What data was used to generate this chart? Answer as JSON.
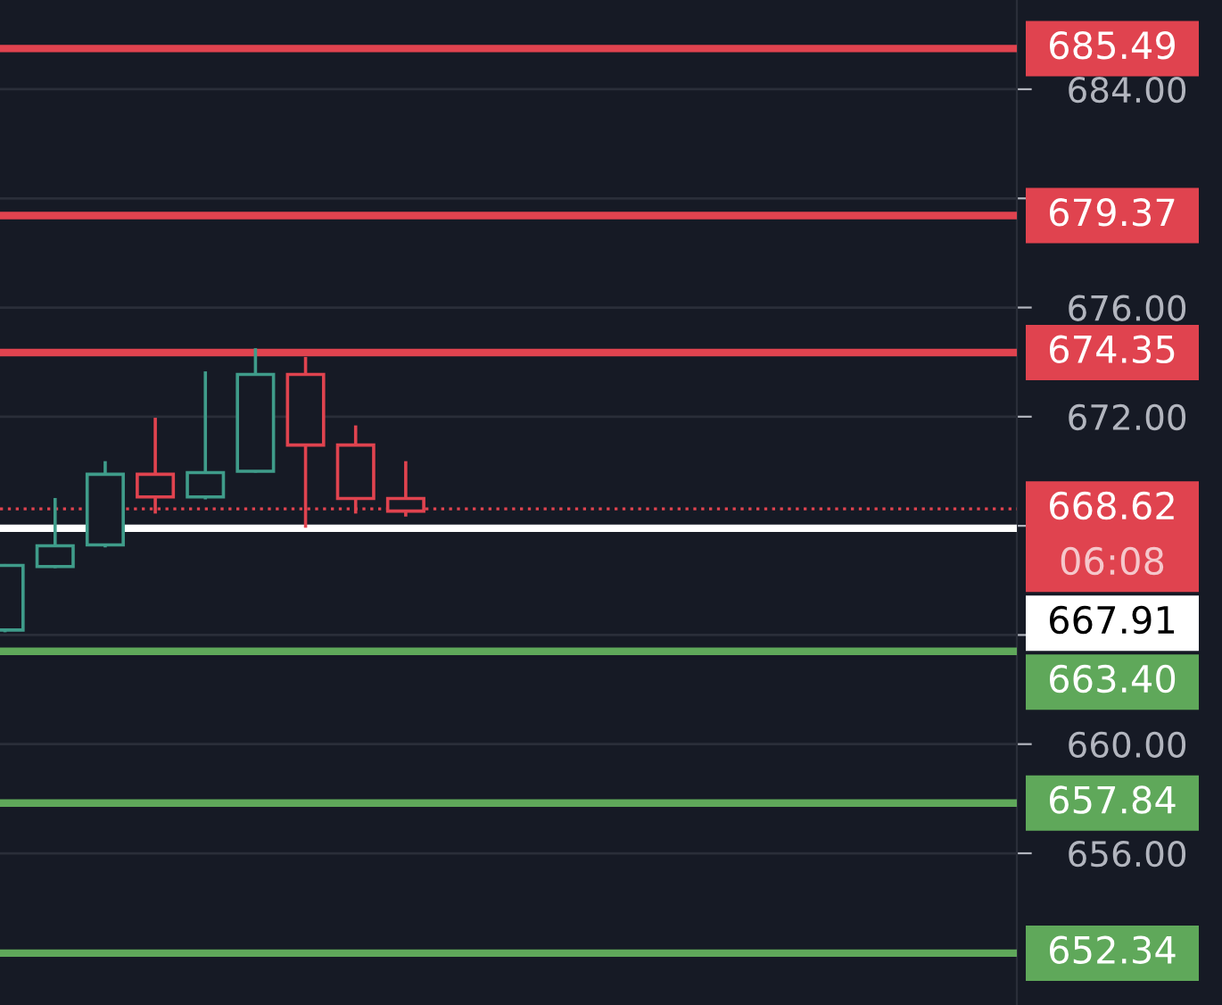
{
  "chart_data": {
    "type": "candlestick",
    "categories": [
      null,
      null,
      null,
      null,
      null,
      null,
      null,
      null,
      null,
      null,
      null,
      null,
      null,
      null,
      null,
      null,
      null,
      null,
      null,
      null,
      null
    ],
    "ohlc": [
      [
        664.18,
        666.6,
        664.1,
        666.55
      ],
      [
        666.51,
        669.02,
        666.45,
        667.27
      ],
      [
        667.3,
        670.37,
        667.21,
        669.89
      ],
      [
        669.89,
        671.96,
        668.45,
        669.06
      ],
      [
        669.06,
        673.66,
        668.97,
        669.95
      ],
      [
        670.0,
        674.51,
        669.95,
        673.55
      ],
      [
        673.55,
        674.19,
        667.93,
        670.96
      ],
      [
        670.96,
        671.68,
        668.45,
        669.0
      ],
      [
        669.0,
        670.37,
        668.34,
        668.54
      ],
      null,
      null,
      null,
      null,
      null,
      null,
      null,
      null,
      null,
      null,
      null,
      null
    ],
    "colors": [
      "#3f9c8a",
      "#3f9c8a",
      "#3f9c8a",
      "#e0434f",
      "#3f9c8a",
      "#3f9c8a",
      "#e0434f",
      "#e0434f",
      "#e0434f",
      null,
      null,
      null,
      null,
      null,
      null,
      null,
      null,
      null,
      null,
      null,
      null
    ],
    "ylim": [
      650.44,
      687.27
    ],
    "yticks": [
      {
        "value": 656,
        "label": "656.00"
      },
      {
        "value": 660,
        "label": "660.00"
      },
      {
        "value": 664,
        "label": null
      },
      {
        "value": 668,
        "label": null
      },
      {
        "value": 672,
        "label": "672.00"
      },
      {
        "value": 676,
        "label": "676.00"
      },
      {
        "value": 680,
        "label": null
      },
      {
        "value": 684,
        "label": "684.00"
      }
    ],
    "grid": "y",
    "ref_lines": [
      {
        "axis": "y",
        "value": 685.49,
        "label": "685.49",
        "color": "#e0434f",
        "line_style": "solid"
      },
      {
        "axis": "y",
        "value": 679.37,
        "label": "679.37",
        "color": "#e0434f",
        "line_style": "solid"
      },
      {
        "axis": "y",
        "value": 674.35,
        "label": "674.35",
        "color": "#e0434f",
        "line_style": "solid"
      },
      {
        "axis": "y",
        "value": 668.62,
        "label": "668.62",
        "color": "#e0434f",
        "line_style": "dotted"
      },
      {
        "axis": "y",
        "value": 667.91,
        "label": "667.91",
        "color": "#ffffff",
        "line_style": "solid"
      },
      {
        "axis": "y",
        "value": 663.4,
        "label": "663.40",
        "color": "#5fa85a",
        "line_style": "solid"
      },
      {
        "axis": "y",
        "value": 657.84,
        "label": "657.84",
        "color": "#5fa85a",
        "line_style": "solid"
      },
      {
        "axis": "y",
        "value": 652.34,
        "label": "652.34",
        "color": "#5fa85a",
        "line_style": "solid"
      }
    ],
    "annotations": [
      "06:08"
    ]
  }
}
